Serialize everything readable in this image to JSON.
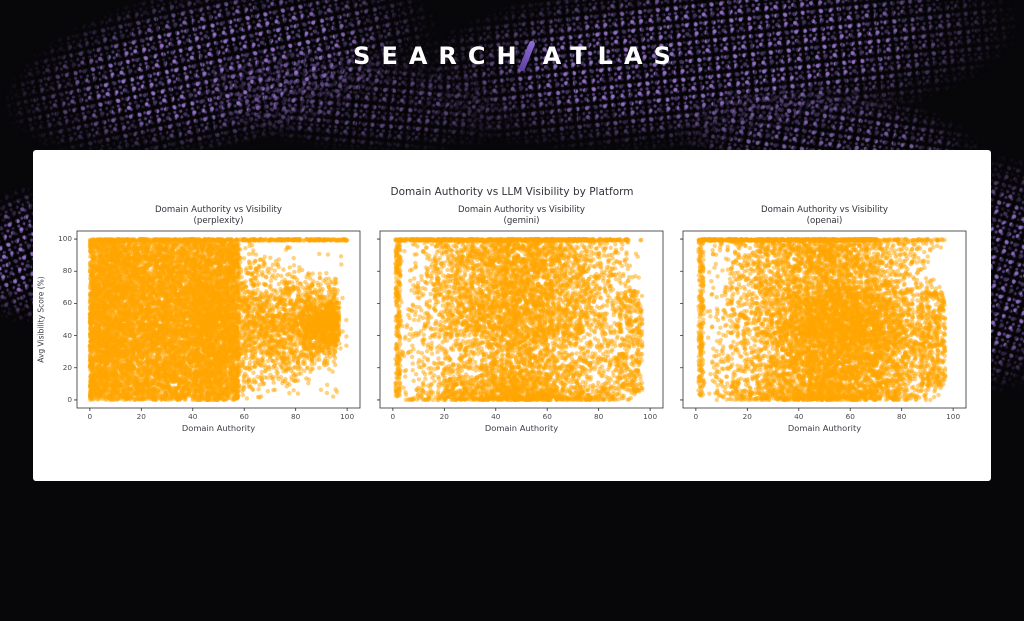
{
  "page": {
    "background_color": "#070609",
    "card_color": "#ffffff",
    "wave_color": "#7a5aa8"
  },
  "logo": {
    "text_left": "SEARCH",
    "text_right": "ATLAS",
    "text_color": "#ffffff",
    "slash_color": "#7b5fc0"
  },
  "chart_data": {
    "type": "scatter",
    "title": "Domain Authority vs LLM Visibility by Platform",
    "point_color": "#FFA500",
    "point_alpha": 0.5,
    "point_radius": 2.2,
    "axis_color": "#2e2e2e",
    "xlim": [
      -5,
      105
    ],
    "ylim": [
      -5,
      105
    ],
    "x_ticks": [
      0,
      20,
      40,
      60,
      80,
      100
    ],
    "y_ticks": [
      0,
      20,
      40,
      60,
      80,
      100
    ],
    "grid": false,
    "legend": "none",
    "charts": [
      {
        "platform": "perplexity",
        "title_line1": "Domain Authority vs Visibility",
        "title_line2": "(perplexity)",
        "xlabel": "Domain Authority",
        "ylabel": "Avg Visibility Score (%)",
        "show_y_tick_labels": true,
        "seed": 7,
        "description": "Very dense solid block DA 0-58 across visibility 0-100; funnel tapering toward visibility ~47 as DA rises to 96; cluster at DA 82-97 vis 30-64; dotted band at visibility 100 across full DA range; sparse outliers elsewhere",
        "components": [
          {
            "n": 9000,
            "da": {
              "dist": "pow",
              "min": 0,
              "max": 58,
              "p": 1.1
            },
            "vis": {
              "dist": "uni",
              "min": 0,
              "max": 100
            }
          },
          {
            "n": 2600,
            "da": {
              "dist": "uni",
              "min": 40,
              "max": 96
            },
            "vis": {
              "dist": "funnel",
              "center": 47,
              "d0": 40,
              "d1": 96,
              "s0": 62,
              "s1": 30
            }
          },
          {
            "n": 420,
            "da": {
              "dist": "pow",
              "min": 82,
              "max": 97,
              "p": 0.7
            },
            "vis": {
              "dist": "tri",
              "min": 30,
              "max": 64
            }
          },
          {
            "n": 420,
            "da": {
              "dist": "pow",
              "min": 0,
              "max": 100,
              "p": 0.8
            },
            "vis": {
              "dist": "uni",
              "min": 99,
              "max": 100
            }
          },
          {
            "n": 260,
            "da": {
              "dist": "uni",
              "min": 0,
              "max": 100
            },
            "vis": {
              "dist": "uni",
              "min": 0,
              "max": 100
            }
          }
        ]
      },
      {
        "platform": "gemini",
        "title_line1": "Domain Authority vs Visibility",
        "title_line2": "(gemini)",
        "xlabel": "Domain Authority",
        "ylabel": "",
        "show_y_tick_labels": false,
        "seed": 13,
        "description": "Grainy cloud over full DA 1-97; densest at low-mid visibility; dense dotted band at visibility 100 up to DA ~76; right-edge cluster DA 87-97 vis 4-68; sparse left column DA 1-3",
        "components": [
          {
            "n": 4200,
            "da": {
              "dist": "tri",
              "min": 1,
              "max": 97
            },
            "vis": {
              "dist": "pow",
              "min": 0,
              "max": 100,
              "p": 1.6
            }
          },
          {
            "n": 1500,
            "da": {
              "dist": "tri",
              "min": 2,
              "max": 96
            },
            "vis": {
              "dist": "uni",
              "min": 40,
              "max": 100
            }
          },
          {
            "n": 600,
            "da": {
              "dist": "pow",
              "min": 1,
              "max": 76,
              "p": 0.9
            },
            "vis": {
              "dist": "uni",
              "min": 99,
              "max": 100
            }
          },
          {
            "n": 70,
            "da": {
              "dist": "uni",
              "min": 70,
              "max": 97
            },
            "vis": {
              "dist": "uni",
              "min": 99,
              "max": 100
            }
          },
          {
            "n": 300,
            "da": {
              "dist": "pow",
              "min": 87,
              "max": 97,
              "p": 0.8
            },
            "vis": {
              "dist": "uni",
              "min": 4,
              "max": 68
            }
          },
          {
            "n": 220,
            "da": {
              "dist": "uni",
              "min": 1,
              "max": 3
            },
            "vis": {
              "dist": "uni",
              "min": 2,
              "max": 100
            }
          }
        ]
      },
      {
        "platform": "openai",
        "title_line1": "Domain Authority vs Visibility",
        "title_line2": "(openai)",
        "xlabel": "Domain Authority",
        "ylabel": "",
        "show_y_tick_labels": false,
        "seed": 29,
        "description": "Grainy cloud over full DA 2-97, denser mid-right blob DA 30-95 at low-mid visibility; dotted band at visibility 100 up to DA ~70; right-edge cluster DA 87-97 vis 8-68; sparse left column DA 1-3",
        "components": [
          {
            "n": 4600,
            "da": {
              "dist": "tri",
              "min": 2,
              "max": 97
            },
            "vis": {
              "dist": "pow",
              "min": 0,
              "max": 100,
              "p": 1.5
            }
          },
          {
            "n": 1600,
            "da": {
              "dist": "tri",
              "min": 30,
              "max": 95
            },
            "vis": {
              "dist": "tri",
              "min": 2,
              "max": 75
            }
          },
          {
            "n": 1300,
            "da": {
              "dist": "tri",
              "min": 2,
              "max": 96
            },
            "vis": {
              "dist": "uni",
              "min": 40,
              "max": 100
            }
          },
          {
            "n": 600,
            "da": {
              "dist": "pow",
              "min": 1,
              "max": 70,
              "p": 0.9
            },
            "vis": {
              "dist": "uni",
              "min": 99,
              "max": 100
            }
          },
          {
            "n": 80,
            "da": {
              "dist": "uni",
              "min": 60,
              "max": 97
            },
            "vis": {
              "dist": "uni",
              "min": 99,
              "max": 100
            }
          },
          {
            "n": 350,
            "da": {
              "dist": "pow",
              "min": 87,
              "max": 97,
              "p": 0.8
            },
            "vis": {
              "dist": "uni",
              "min": 8,
              "max": 68
            }
          },
          {
            "n": 200,
            "da": {
              "dist": "uni",
              "min": 1,
              "max": 3
            },
            "vis": {
              "dist": "uni",
              "min": 2,
              "max": 100
            }
          }
        ]
      }
    ]
  }
}
